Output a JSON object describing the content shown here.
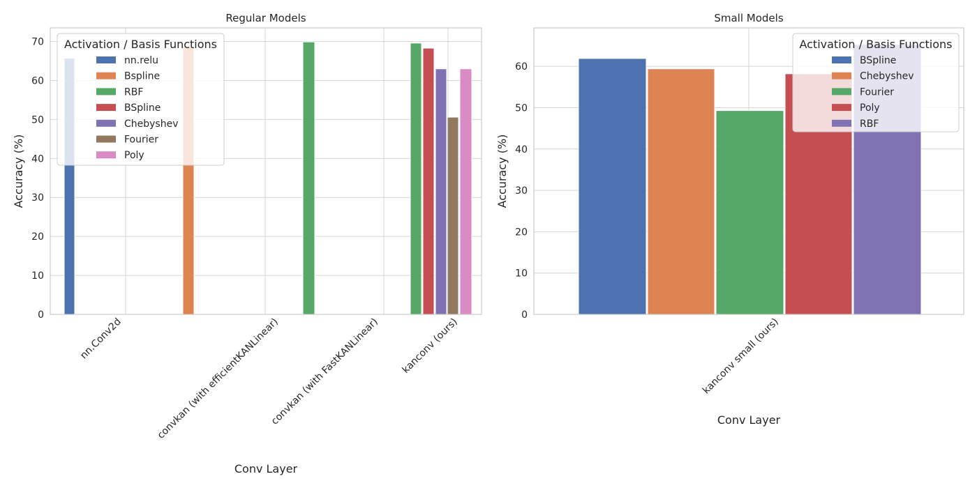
{
  "chart_data": [
    {
      "type": "bar",
      "title": "Regular Models",
      "xlabel": "Conv Layer",
      "ylabel": "Accuracy (%)",
      "ylim": [
        0,
        73.5
      ],
      "yticks": [
        0,
        10,
        20,
        30,
        40,
        50,
        60,
        70
      ],
      "grid": true,
      "legend_title": "Activation / Basis Functions",
      "legend_position": "upper-left",
      "categories": [
        "nn.Conv2d",
        "convkan (with efficientKANLinear)",
        "convkan (with FastKANLinear)",
        "kanconv (ours)"
      ],
      "series": [
        {
          "name": "nn.relu",
          "color": "#4c72b0",
          "values": [
            65.7,
            null,
            null,
            null
          ]
        },
        {
          "name": "Bspline",
          "color": "#dd8452",
          "values": [
            null,
            68.8,
            null,
            null
          ]
        },
        {
          "name": "RBF",
          "color": "#55a868",
          "values": [
            null,
            null,
            69.9,
            69.6
          ]
        },
        {
          "name": "BSpline",
          "color": "#c44e52",
          "values": [
            null,
            null,
            null,
            68.3
          ]
        },
        {
          "name": "Chebyshev",
          "color": "#8172b3",
          "values": [
            null,
            null,
            null,
            63.0
          ]
        },
        {
          "name": "Fourier",
          "color": "#937860",
          "values": [
            null,
            null,
            null,
            50.6
          ]
        },
        {
          "name": "Poly",
          "color": "#da8bc3",
          "values": [
            null,
            null,
            null,
            63.0
          ]
        }
      ]
    },
    {
      "type": "bar",
      "title": "Small Models",
      "xlabel": "Conv Layer",
      "ylabel": "Accuracy (%)",
      "ylim": [
        0,
        69.3
      ],
      "yticks": [
        0,
        10,
        20,
        30,
        40,
        50,
        60
      ],
      "grid": true,
      "legend_title": "Activation / Basis Functions",
      "legend_position": "upper-right",
      "categories": [
        "kanconv small (ours)"
      ],
      "series": [
        {
          "name": "BSpline",
          "color": "#4c72b0",
          "values": [
            61.9
          ]
        },
        {
          "name": "Chebyshev",
          "color": "#dd8452",
          "values": [
            59.4
          ]
        },
        {
          "name": "Fourier",
          "color": "#55a868",
          "values": [
            49.3
          ]
        },
        {
          "name": "Poly",
          "color": "#c44e52",
          "values": [
            58.2
          ]
        },
        {
          "name": "RBF",
          "color": "#8172b3",
          "values": [
            65.3
          ]
        }
      ]
    }
  ]
}
